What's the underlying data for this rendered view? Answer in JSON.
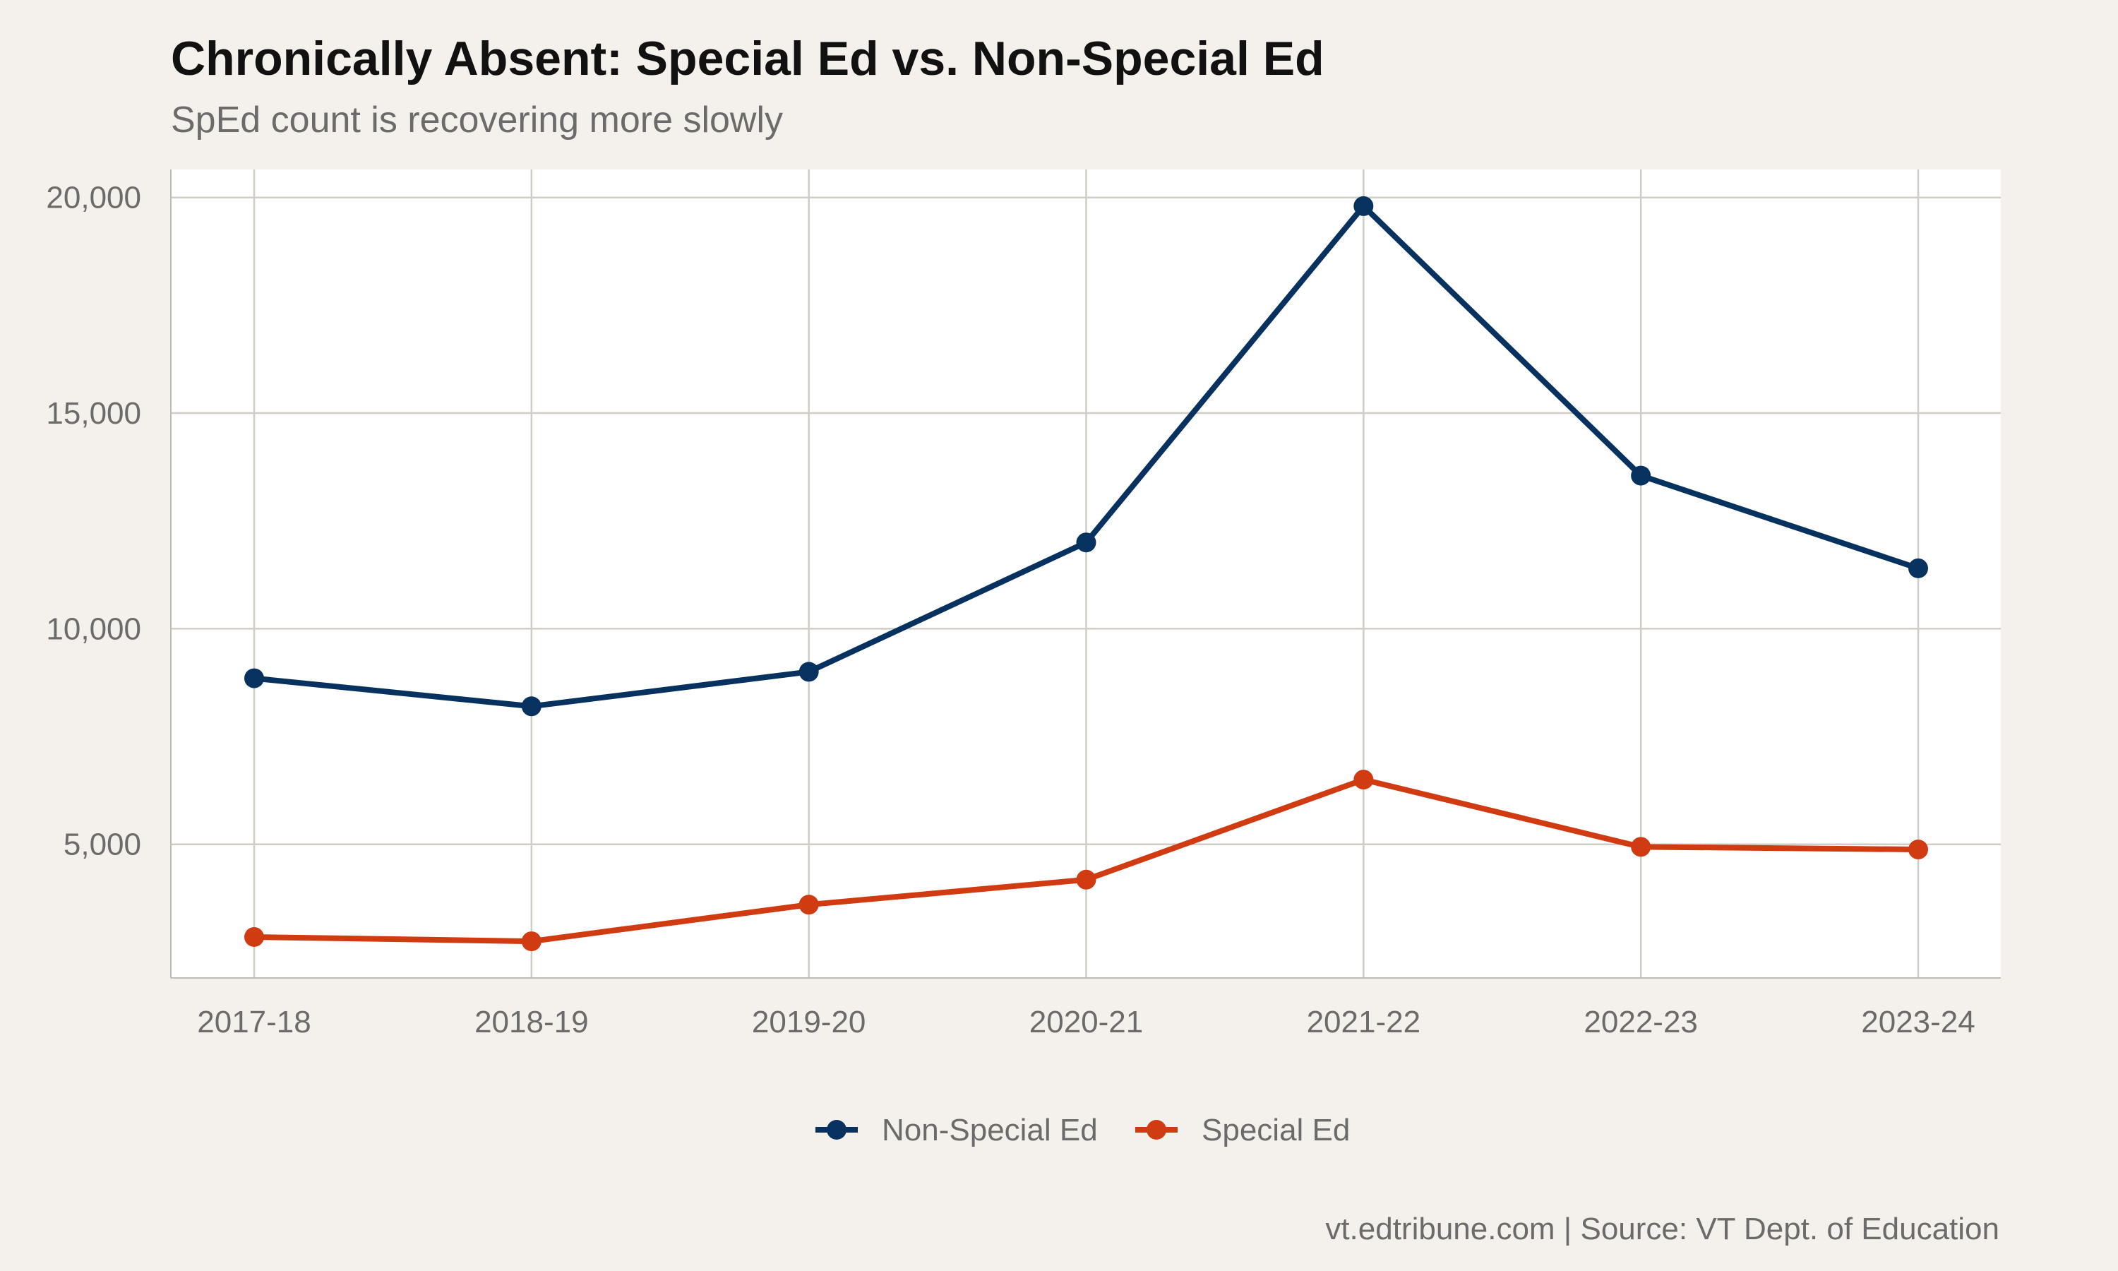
{
  "chart_data": {
    "type": "line",
    "title": "Chronically Absent: Special Ed vs. Non-Special Ed",
    "subtitle": "SpEd count is recovering more slowly",
    "caption": "vt.edtribune.com | Source: VT Dept. of Education",
    "xlabel": "",
    "ylabel": "",
    "categories": [
      "2017-18",
      "2018-19",
      "2019-20",
      "2020-21",
      "2021-22",
      "2022-23",
      "2023-24"
    ],
    "y_ticks": [
      5000,
      10000,
      15000,
      20000
    ],
    "y_tick_labels": [
      "5,000",
      "10,000",
      "15,000",
      "20,000"
    ],
    "ylim": [
      1900,
      20650
    ],
    "grid": true,
    "legend_position": "bottom",
    "series": [
      {
        "name": "Non-Special Ed",
        "color": "#07325f",
        "values": [
          8850,
          8200,
          9000,
          12000,
          19800,
          13550,
          11400
        ]
      },
      {
        "name": "Special Ed",
        "color": "#d13b12",
        "values": [
          2850,
          2750,
          3600,
          4180,
          6500,
          4940,
          4880
        ]
      }
    ]
  }
}
